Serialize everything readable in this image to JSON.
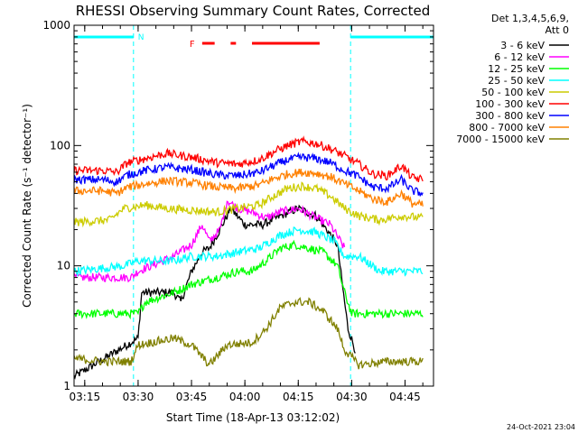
{
  "chart_data": {
    "type": "line",
    "title": "RHESSI Observing Summary Count Rates, Corrected",
    "xlabel": "Start Time (18-Apr-13 03:12:02)",
    "ylabel": "Corrected Count Rate (s⁻¹ detector⁻¹)",
    "yscale": "log",
    "ylim": [
      1,
      1000
    ],
    "xlim_minutes": [
      12.0,
      113.0
    ],
    "xticks": [
      {
        "label": "03:15",
        "minute": 15
      },
      {
        "label": "03:30",
        "minute": 30
      },
      {
        "label": "03:45",
        "minute": 45
      },
      {
        "label": "04:00",
        "minute": 60
      },
      {
        "label": "04:15",
        "minute": 75
      },
      {
        "label": "04:30",
        "minute": 90
      },
      {
        "label": "04:45",
        "minute": 105
      }
    ],
    "yticks": [
      {
        "label": "1",
        "value": 1
      },
      {
        "label": "10",
        "value": 10
      },
      {
        "label": "100",
        "value": 100
      },
      {
        "label": "1000",
        "value": 1000
      }
    ],
    "legend_header": [
      "Det 1,3,4,5,6,9,",
      "Att 0"
    ],
    "legend_placement": "right",
    "footer_date": "24-Oct-2021 23:04",
    "annotations": {
      "night_label": "N",
      "flare_label": "F",
      "night_intervals_minutes": [
        [
          12.0,
          28.7
        ],
        [
          89.7,
          113.0
        ]
      ],
      "flare_intervals_minutes": [
        [
          48.0,
          51.5
        ],
        [
          56.0,
          57.5
        ],
        [
          62.0,
          81.0
        ]
      ]
    },
    "series": [
      {
        "name": "3 - 6 keV",
        "color": "#000000",
        "points": [
          [
            12,
            1.2
          ],
          [
            30,
            2.5
          ],
          [
            31,
            6
          ],
          [
            40,
            6
          ],
          [
            42,
            5
          ],
          [
            45,
            9
          ],
          [
            48,
            13
          ],
          [
            50,
            14
          ],
          [
            53,
            20
          ],
          [
            56,
            30
          ],
          [
            60,
            22
          ],
          [
            65,
            22
          ],
          [
            70,
            26
          ],
          [
            75,
            30
          ],
          [
            80,
            26
          ],
          [
            83,
            20
          ],
          [
            86,
            15
          ],
          [
            88,
            5
          ],
          [
            89,
            3
          ],
          [
            91,
            2
          ]
        ]
      },
      {
        "name": "6 - 12 keV",
        "color": "#ff00ff",
        "points": [
          [
            12,
            8
          ],
          [
            28,
            8
          ],
          [
            30,
            9
          ],
          [
            40,
            12
          ],
          [
            45,
            15
          ],
          [
            48,
            22
          ],
          [
            50,
            16
          ],
          [
            53,
            20
          ],
          [
            55,
            35
          ],
          [
            58,
            30
          ],
          [
            62,
            28
          ],
          [
            66,
            25
          ],
          [
            70,
            28
          ],
          [
            75,
            30
          ],
          [
            80,
            25
          ],
          [
            84,
            22
          ],
          [
            88,
            14
          ]
        ]
      },
      {
        "name": "12 - 25 keV",
        "color": "#00ff00",
        "points": [
          [
            12,
            4
          ],
          [
            30,
            4
          ],
          [
            32,
            5
          ],
          [
            40,
            6
          ],
          [
            45,
            7
          ],
          [
            52,
            8
          ],
          [
            58,
            9
          ],
          [
            62,
            9
          ],
          [
            66,
            11
          ],
          [
            70,
            14
          ],
          [
            74,
            15
          ],
          [
            78,
            14
          ],
          [
            82,
            13
          ],
          [
            86,
            10
          ],
          [
            88,
            6
          ],
          [
            90,
            4
          ],
          [
            100,
            4
          ],
          [
            106,
            4
          ],
          [
            110,
            4
          ]
        ]
      },
      {
        "name": "25 - 50 keV",
        "color": "#00ffff",
        "points": [
          [
            12,
            9
          ],
          [
            26,
            10
          ],
          [
            30,
            11
          ],
          [
            40,
            11
          ],
          [
            45,
            12
          ],
          [
            52,
            12
          ],
          [
            58,
            13
          ],
          [
            64,
            14
          ],
          [
            70,
            18
          ],
          [
            75,
            20
          ],
          [
            80,
            19
          ],
          [
            85,
            16
          ],
          [
            88,
            12
          ],
          [
            92,
            12
          ],
          [
            98,
            9
          ],
          [
            104,
            9
          ],
          [
            110,
            9
          ]
        ]
      },
      {
        "name": "50 - 100 keV",
        "color": "#cccc00",
        "points": [
          [
            12,
            23
          ],
          [
            22,
            24
          ],
          [
            26,
            30
          ],
          [
            32,
            32
          ],
          [
            38,
            30
          ],
          [
            45,
            29
          ],
          [
            52,
            28
          ],
          [
            58,
            30
          ],
          [
            64,
            32
          ],
          [
            68,
            38
          ],
          [
            72,
            44
          ],
          [
            76,
            46
          ],
          [
            80,
            44
          ],
          [
            84,
            38
          ],
          [
            88,
            30
          ],
          [
            92,
            26
          ],
          [
            98,
            24
          ],
          [
            104,
            26
          ],
          [
            110,
            25
          ]
        ]
      },
      {
        "name": "100 - 300 keV",
        "color": "#ff0000",
        "points": [
          [
            12,
            62
          ],
          [
            20,
            62
          ],
          [
            24,
            60
          ],
          [
            27,
            72
          ],
          [
            32,
            78
          ],
          [
            38,
            86
          ],
          [
            45,
            80
          ],
          [
            52,
            72
          ],
          [
            58,
            70
          ],
          [
            64,
            76
          ],
          [
            68,
            88
          ],
          [
            72,
            100
          ],
          [
            76,
            108
          ],
          [
            80,
            104
          ],
          [
            84,
            94
          ],
          [
            88,
            82
          ],
          [
            92,
            70
          ],
          [
            96,
            58
          ],
          [
            100,
            56
          ],
          [
            104,
            68
          ],
          [
            107,
            54
          ],
          [
            110,
            52
          ]
        ]
      },
      {
        "name": "300 - 800 keV",
        "color": "#0000ff",
        "points": [
          [
            12,
            52
          ],
          [
            20,
            52
          ],
          [
            24,
            50
          ],
          [
            27,
            57
          ],
          [
            32,
            62
          ],
          [
            38,
            66
          ],
          [
            45,
            63
          ],
          [
            52,
            57
          ],
          [
            58,
            56
          ],
          [
            64,
            60
          ],
          [
            68,
            68
          ],
          [
            72,
            76
          ],
          [
            76,
            80
          ],
          [
            80,
            78
          ],
          [
            84,
            72
          ],
          [
            88,
            62
          ],
          [
            92,
            55
          ],
          [
            96,
            45
          ],
          [
            100,
            44
          ],
          [
            104,
            52
          ],
          [
            107,
            42
          ],
          [
            110,
            40
          ]
        ]
      },
      {
        "name": "800 - 7000 keV",
        "color": "#ff8000",
        "points": [
          [
            12,
            42
          ],
          [
            20,
            42
          ],
          [
            24,
            40
          ],
          [
            27,
            45
          ],
          [
            32,
            48
          ],
          [
            38,
            51
          ],
          [
            45,
            49
          ],
          [
            52,
            45
          ],
          [
            58,
            44
          ],
          [
            64,
            47
          ],
          [
            68,
            53
          ],
          [
            72,
            58
          ],
          [
            76,
            60
          ],
          [
            80,
            59
          ],
          [
            84,
            55
          ],
          [
            88,
            48
          ],
          [
            92,
            42
          ],
          [
            96,
            36
          ],
          [
            100,
            34
          ],
          [
            104,
            40
          ],
          [
            107,
            33
          ],
          [
            110,
            32
          ]
        ]
      },
      {
        "name": "7000 - 15000 keV",
        "color": "#808000",
        "points": [
          [
            12,
            1.7
          ],
          [
            20,
            1.6
          ],
          [
            28,
            1.6
          ],
          [
            30,
            2.2
          ],
          [
            40,
            2.5
          ],
          [
            45,
            2.2
          ],
          [
            50,
            1.5
          ],
          [
            55,
            2.2
          ],
          [
            62,
            2.3
          ],
          [
            66,
            3.0
          ],
          [
            70,
            4.5
          ],
          [
            74,
            5.0
          ],
          [
            78,
            5.0
          ],
          [
            82,
            4.2
          ],
          [
            86,
            3.0
          ],
          [
            88,
            2.0
          ],
          [
            92,
            1.5
          ],
          [
            100,
            1.6
          ],
          [
            106,
            1.6
          ],
          [
            110,
            1.6
          ]
        ]
      }
    ]
  }
}
